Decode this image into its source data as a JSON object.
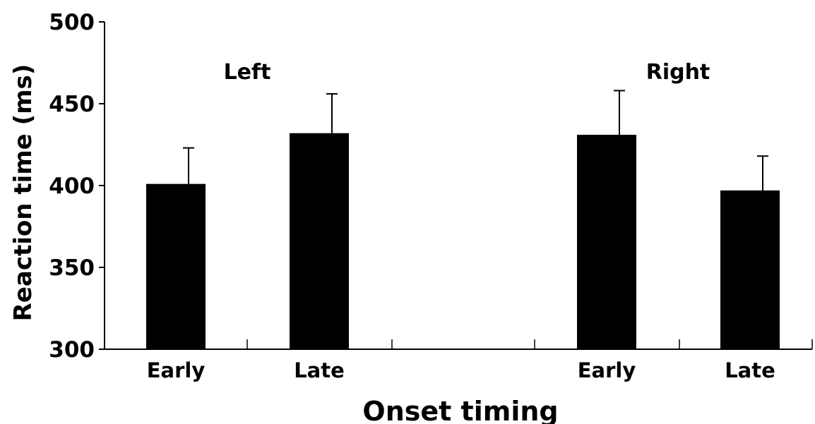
{
  "chart_data": {
    "type": "bar",
    "title": "",
    "xlabel": "Onset timing",
    "ylabel": "Reaction time (ms)",
    "ylim": [
      300,
      500
    ],
    "yticks": [
      300,
      350,
      400,
      450,
      500
    ],
    "grid": false,
    "legend": "none",
    "groups": [
      {
        "name": "Left",
        "categories": [
          "Early",
          "Late"
        ],
        "values": [
          401,
          432
        ],
        "errors": [
          22,
          24
        ]
      },
      {
        "name": "Right",
        "categories": [
          "Early",
          "Late"
        ],
        "values": [
          431,
          397
        ],
        "errors": [
          27,
          21
        ]
      }
    ],
    "colors": {
      "bar": "#000000",
      "axis": "#000000",
      "text": "#000000"
    }
  }
}
